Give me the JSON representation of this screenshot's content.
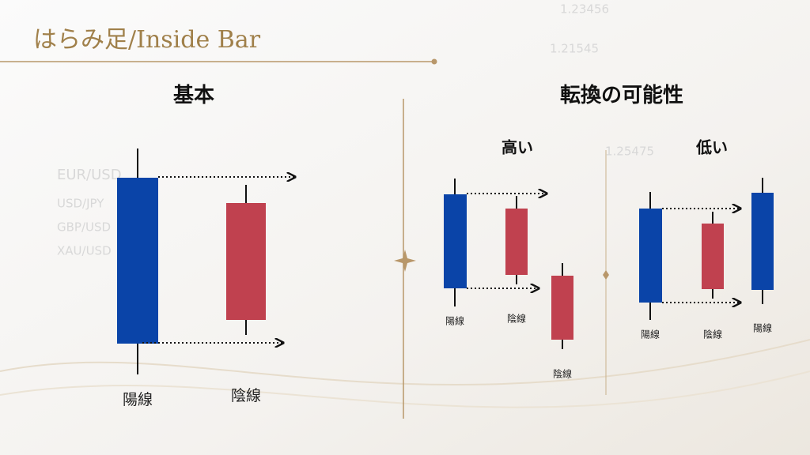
{
  "title": "はらみ足/Inside Bar",
  "basic": {
    "heading": "基本",
    "labels": [
      "陽線",
      "陰線"
    ]
  },
  "reversal": {
    "heading": "転換の可能性",
    "high": {
      "heading": "高い",
      "labels": [
        "陽線",
        "陰線",
        "陰線"
      ]
    },
    "low": {
      "heading": "低い",
      "labels": [
        "陽線",
        "陰線",
        "陽線"
      ]
    }
  },
  "background": [
    "EUR/USD",
    "USD/JPY",
    "GBP/USD",
    "XAU/USD",
    "1.23456",
    "1.21545",
    "1.25475"
  ]
}
